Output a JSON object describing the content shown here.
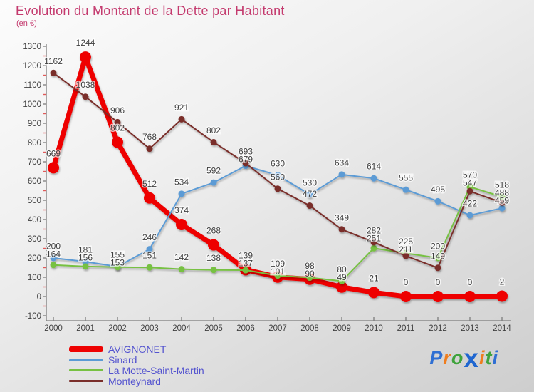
{
  "header": {
    "title": "Evolution du Montant de la Dette par Habitant",
    "subtitle": "(en €)",
    "title_color": "#c43a6e"
  },
  "chart_data": {
    "type": "line",
    "title": "Evolution du Montant de la Dette par Habitant",
    "unit_label": "(en €)",
    "x_labels": [
      "2000",
      "2001",
      "2002",
      "2003",
      "2004",
      "2005",
      "2006",
      "2007",
      "2008",
      "2009",
      "2010",
      "2011",
      "2012",
      "2013",
      "2014"
    ],
    "ylim": [
      -100,
      1300
    ],
    "yticks": [
      -100,
      0,
      100,
      200,
      300,
      400,
      500,
      600,
      700,
      800,
      900,
      1000,
      1100,
      1200,
      1300
    ],
    "grid": false,
    "legend_position": "bottom-left",
    "axis_color": "#7c7c7c",
    "tick_label_color": "#3f3f3f",
    "data_label_color": "#3f3f3f",
    "minor_tick_color": "#e05a5a",
    "series": [
      {
        "name": "AVIGNONET",
        "color": "#ee0202",
        "line_width": 7,
        "marker": 8,
        "values": [
          669,
          1244,
          802,
          512,
          374,
          268,
          139,
          101,
          90,
          49,
          21,
          0,
          0,
          0,
          2
        ]
      },
      {
        "name": "Sinard",
        "color": "#5b9bd5",
        "line_width": 2,
        "marker": 4.5,
        "values": [
          200,
          181,
          155,
          246,
          534,
          592,
          679,
          630,
          530,
          634,
          614,
          555,
          495,
          422,
          459
        ]
      },
      {
        "name": "La Motte-Saint-Martin",
        "color": "#77c142",
        "line_width": 2,
        "marker": 4.5,
        "values": [
          164,
          156,
          153,
          151,
          142,
          138,
          137,
          109,
          98,
          80,
          251,
          225,
          200,
          570,
          518
        ]
      },
      {
        "name": "Monteynard",
        "color": "#7a2e2a",
        "line_width": 2,
        "marker": 4.5,
        "values": [
          1162,
          1038,
          906,
          768,
          921,
          802,
          693,
          560,
          472,
          349,
          282,
          211,
          149,
          547,
          488
        ]
      }
    ]
  },
  "legend": {
    "text_color": "#5353cf"
  },
  "logo": {
    "text": "Proxiti",
    "letters": [
      {
        "ch": "P",
        "color": "#2f6fd3",
        "big": false
      },
      {
        "ch": "r",
        "color": "#ef7d1e",
        "big": false
      },
      {
        "ch": "o",
        "color": "#3fa33c",
        "big": false
      },
      {
        "ch": "x",
        "color": "#1f66d0",
        "big": true
      },
      {
        "ch": "i",
        "color": "#ef7d1e",
        "big": false
      },
      {
        "ch": "t",
        "color": "#3fa33c",
        "big": false
      },
      {
        "ch": "i",
        "color": "#2f6fd3",
        "big": false
      }
    ]
  }
}
